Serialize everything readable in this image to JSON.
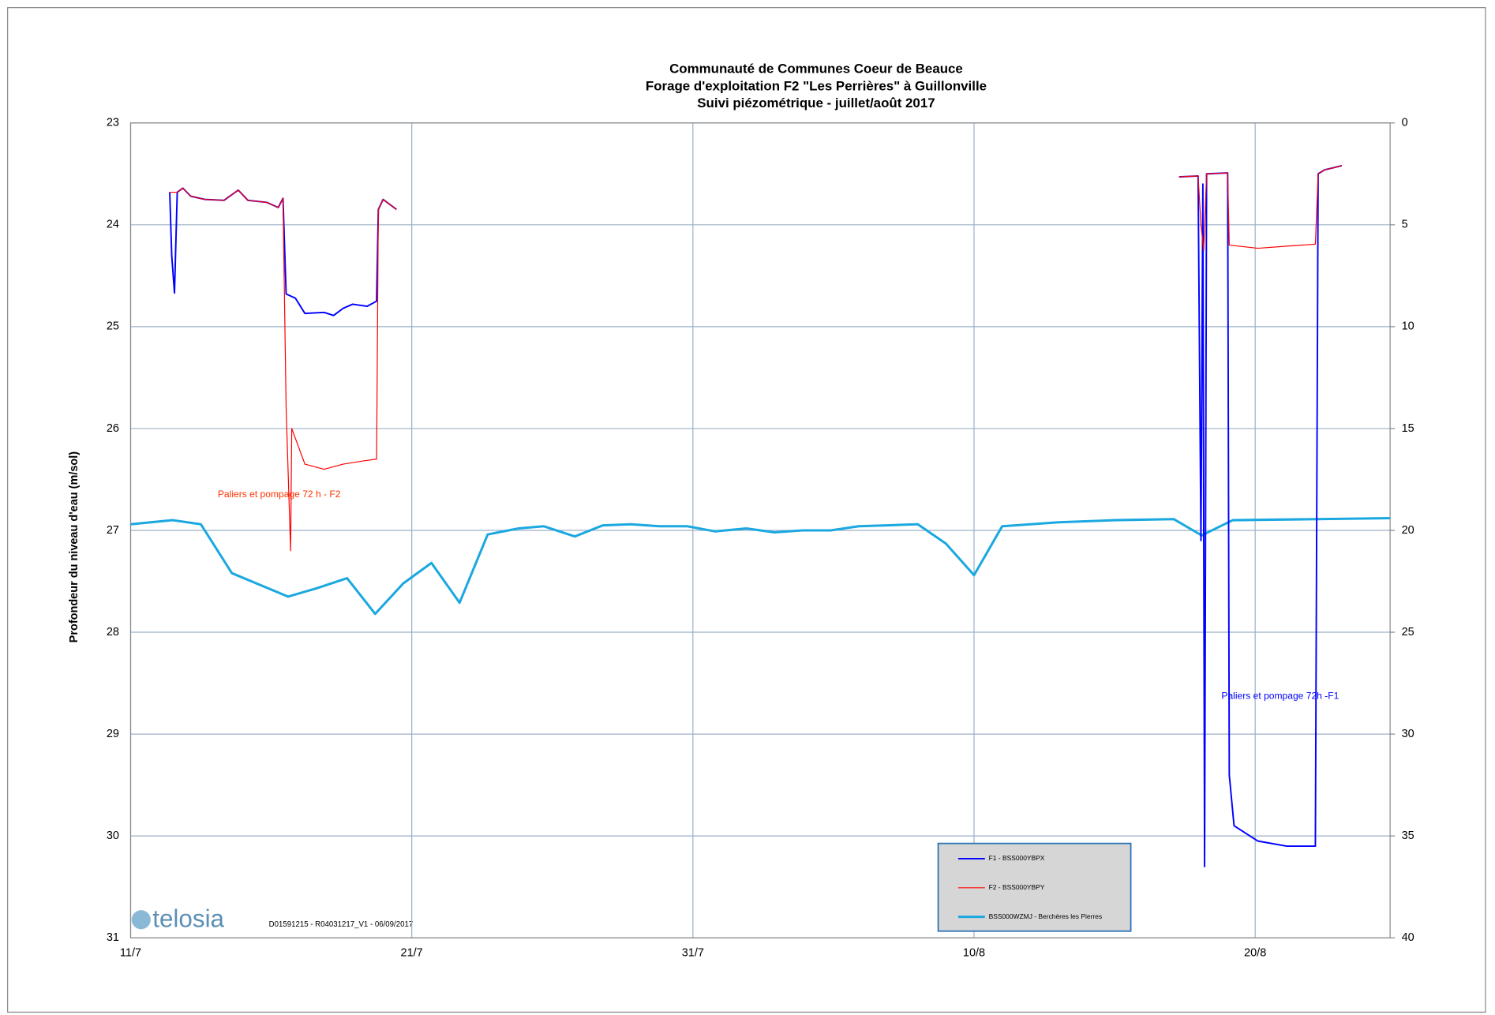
{
  "chart_data": {
    "type": "line",
    "title": [
      "Communauté de Communes Coeur de Beauce",
      "Forage d'exploitation F2 \"Les Perrières\" à Guillonville",
      "Suivi piézométrique -  juillet/août 2017"
    ],
    "ylabel": "Profondeur du niveau d'eau  (m/sol)",
    "xlim": [
      0,
      44.8
    ],
    "xticks": [
      {
        "value": 0,
        "label": "11/7"
      },
      {
        "value": 10,
        "label": "21/7"
      },
      {
        "value": 20,
        "label": "31/7"
      },
      {
        "value": 30,
        "label": "10/8"
      },
      {
        "value": 40,
        "label": "20/8"
      }
    ],
    "ylim": [
      23,
      31
    ],
    "yticks": [
      23,
      24,
      25,
      26,
      27,
      28,
      29,
      30,
      31
    ],
    "y2lim": [
      0,
      40
    ],
    "y2ticks": [
      0,
      5,
      10,
      15,
      20,
      25,
      30,
      35,
      40
    ],
    "y_inverted": true,
    "grid": true,
    "series": [
      {
        "name": "F1 - BSS000YBPX",
        "color": "#0000ff",
        "width": 1.6,
        "x": [
          1.39,
          1.46,
          1.56,
          1.66,
          1.86,
          2.14,
          2.64,
          3.32,
          3.83,
          4.17,
          4.85,
          5.25,
          5.42,
          5.53,
          5.86,
          6.2,
          6.88,
          7.22,
          7.56,
          7.9,
          8.41,
          8.75,
          8.81,
          8.98,
          9.46,
          null,
          37.29,
          37.97,
          38.07,
          38.14,
          38.2,
          38.27,
          39.02,
          39.08,
          39.25,
          40.1,
          41.12,
          42.14,
          42.24,
          42.47,
          43.08
        ],
        "values": [
          23.68,
          24.3,
          24.67,
          23.68,
          23.64,
          23.72,
          23.75,
          23.76,
          23.66,
          23.76,
          23.78,
          23.83,
          23.74,
          24.68,
          24.72,
          24.87,
          24.86,
          24.89,
          24.82,
          24.78,
          24.8,
          24.75,
          23.85,
          23.75,
          23.85,
          null,
          23.53,
          23.52,
          27.1,
          23.6,
          30.3,
          23.5,
          23.49,
          29.4,
          29.9,
          30.05,
          30.1,
          30.1,
          23.5,
          23.46,
          23.42
        ]
      },
      {
        "name": "F2 - BSS000YBPY",
        "color": "#ff0000",
        "width": 1,
        "x": [
          1.39,
          1.66,
          1.86,
          2.14,
          2.64,
          3.32,
          3.83,
          4.17,
          4.85,
          5.25,
          5.42,
          5.53,
          5.69,
          5.73,
          6.2,
          6.88,
          7.56,
          8.24,
          8.75,
          8.81,
          8.98,
          9.46,
          null,
          37.29,
          37.97,
          38.07,
          38.17,
          38.27,
          39.02,
          39.08,
          40.1,
          41.12,
          42.14,
          42.24,
          42.47,
          43.08
        ],
        "values": [
          23.68,
          23.68,
          23.64,
          23.72,
          23.75,
          23.76,
          23.66,
          23.76,
          23.78,
          23.83,
          23.74,
          25.8,
          27.2,
          26.0,
          26.35,
          26.4,
          26.35,
          26.32,
          26.3,
          23.85,
          23.75,
          23.85,
          null,
          23.53,
          23.52,
          24.0,
          24.25,
          23.5,
          23.49,
          24.2,
          24.23,
          24.21,
          24.19,
          23.5,
          23.46,
          23.42
        ]
      },
      {
        "name": "BSS000WZMJ - Berchères les Pierres",
        "color": "#1ba8e0",
        "width": 2.5,
        "x": [
          0,
          1.5,
          2.5,
          3.6,
          5.6,
          6.6,
          7.7,
          8.7,
          9.7,
          10.7,
          11.7,
          12.7,
          13.8,
          14.7,
          15.8,
          16.8,
          17.8,
          18.8,
          19.8,
          20.8,
          21.9,
          22.9,
          23.9,
          24.9,
          25.9,
          26.9,
          28.0,
          29.0,
          30.0,
          31.0,
          33.0,
          35.0,
          37.1,
          38.1,
          39.2,
          42.2,
          44.8
        ],
        "values": [
          26.94,
          26.9,
          26.94,
          27.42,
          27.65,
          27.57,
          27.47,
          27.82,
          27.52,
          27.32,
          27.71,
          27.04,
          26.98,
          26.96,
          27.06,
          26.95,
          26.94,
          26.96,
          26.96,
          27.01,
          26.98,
          27.02,
          27.0,
          27.0,
          26.96,
          26.95,
          26.94,
          27.13,
          27.44,
          26.96,
          26.92,
          26.9,
          26.89,
          27.05,
          26.9,
          26.89,
          26.88
        ]
      }
    ],
    "annotations": [
      {
        "text": "Paliers et pompage  72 h - F2",
        "color": "#ff3300",
        "x": 3.1,
        "y": 26.65
      },
      {
        "text": "Paliers et pompage  72h -F1",
        "color": "#0000ff",
        "x": 38.8,
        "y": 28.63
      }
    ],
    "footer": "D01591215 - R04031217_V1 - 06/09/2017",
    "logo": "telosia"
  }
}
